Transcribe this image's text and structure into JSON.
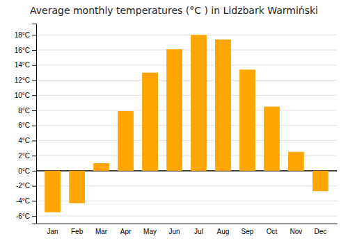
{
  "chart_data": {
    "type": "bar",
    "title": "Average monthly temperatures (°C ) in Lidzbark Warmiński",
    "categories": [
      "Jan",
      "Feb",
      "Mar",
      "Apr",
      "May",
      "Jun",
      "Jul",
      "Aug",
      "Sep",
      "Oct",
      "Nov",
      "Dec"
    ],
    "values": [
      -5.5,
      -4.3,
      1.0,
      7.9,
      13.0,
      16.1,
      18.0,
      17.4,
      13.4,
      8.5,
      2.5,
      -2.7
    ],
    "color": "#FFA500",
    "ylim": [
      -7,
      19.5
    ],
    "yticks": [
      {
        "value": -6,
        "label": "-6°C"
      },
      {
        "value": -4,
        "label": "-4°C"
      },
      {
        "value": -2,
        "label": "-2°C"
      },
      {
        "value": 0,
        "label": "0°C"
      },
      {
        "value": 2,
        "label": "2°C"
      },
      {
        "value": 4,
        "label": "4°C"
      },
      {
        "value": 6,
        "label": "6°C"
      },
      {
        "value": 8,
        "label": "8°C"
      },
      {
        "value": 10,
        "label": "10°C"
      },
      {
        "value": 12,
        "label": "12°C"
      },
      {
        "value": 14,
        "label": "14°C"
      },
      {
        "value": 16,
        "label": "16°C"
      },
      {
        "value": 18,
        "label": "18°C"
      }
    ],
    "grid": true
  }
}
